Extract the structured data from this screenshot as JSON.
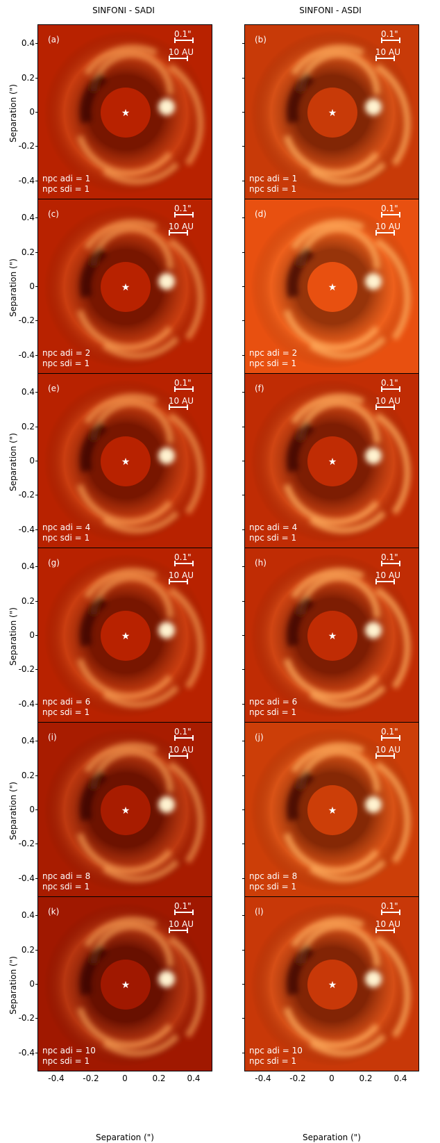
{
  "columns": [
    "SINFONI - SADI",
    "SINFONI - ASDI"
  ],
  "scale_bars": {
    "angular": "0.1\"",
    "physical": "10 AU"
  },
  "axes": {
    "ylabel": "Separation (\")",
    "xlabel": "Separation (\")",
    "yticks": [
      "0.4",
      "0.2",
      "0",
      "-0.2",
      "-0.4"
    ],
    "xticks": [
      "-0.4",
      "-0.2",
      "0",
      "0.2",
      "0.4"
    ]
  },
  "panels": [
    {
      "label": "(a)",
      "npc_adi": "npc adi = 1",
      "npc_sdi": "npc sdi = 1",
      "bg": "#b82200"
    },
    {
      "label": "(b)",
      "npc_adi": "npc adi = 1",
      "npc_sdi": "npc sdi = 1",
      "bg": "#c83a08"
    },
    {
      "label": "(c)",
      "npc_adi": "npc adi = 2",
      "npc_sdi": "npc sdi = 1",
      "bg": "#b82200"
    },
    {
      "label": "(d)",
      "npc_adi": "npc adi = 2",
      "npc_sdi": "npc sdi = 1",
      "bg": "#e85010"
    },
    {
      "label": "(e)",
      "npc_adi": "npc adi = 4",
      "npc_sdi": "npc sdi = 1",
      "bg": "#b82200"
    },
    {
      "label": "(f)",
      "npc_adi": "npc adi = 4",
      "npc_sdi": "npc sdi = 1",
      "bg": "#c02c04"
    },
    {
      "label": "(g)",
      "npc_adi": "npc adi = 6",
      "npc_sdi": "npc sdi = 1",
      "bg": "#b82200"
    },
    {
      "label": "(h)",
      "npc_adi": "npc adi = 6",
      "npc_sdi": "npc sdi = 1",
      "bg": "#c02c04"
    },
    {
      "label": "(i)",
      "npc_adi": "npc adi = 8",
      "npc_sdi": "npc sdi = 1",
      "bg": "#a81c00"
    },
    {
      "label": "(j)",
      "npc_adi": "npc adi = 8",
      "npc_sdi": "npc sdi = 1",
      "bg": "#cc3e08"
    },
    {
      "label": "(k)",
      "npc_adi": "npc adi = 10",
      "npc_sdi": "npc sdi = 1",
      "bg": "#a01800"
    },
    {
      "label": "(l)",
      "npc_adi": "npc adi = 10",
      "npc_sdi": "npc sdi = 1",
      "bg": "#c83808"
    }
  ]
}
